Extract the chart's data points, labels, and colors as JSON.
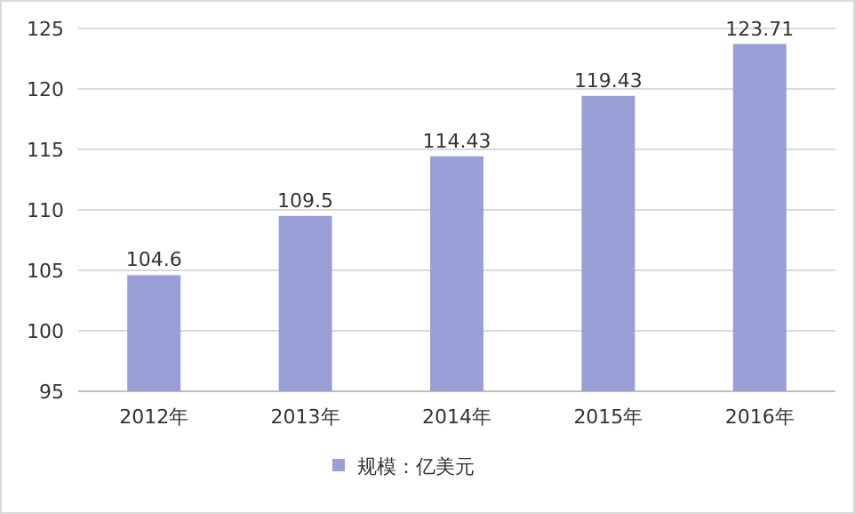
{
  "chart_data": {
    "type": "bar",
    "categories": [
      "2012年",
      "2013年",
      "2014年",
      "2015年",
      "2016年"
    ],
    "series": [
      {
        "name": "规模：亿美元",
        "color": "#9a9ed6",
        "values": [
          104.6,
          109.5,
          114.43,
          119.43,
          123.71
        ]
      }
    ],
    "ylim": [
      95,
      125
    ],
    "yticks": [
      95,
      100,
      105,
      110,
      115,
      120,
      125
    ],
    "grid": "y",
    "legend": "bottom",
    "data_labels": true
  }
}
